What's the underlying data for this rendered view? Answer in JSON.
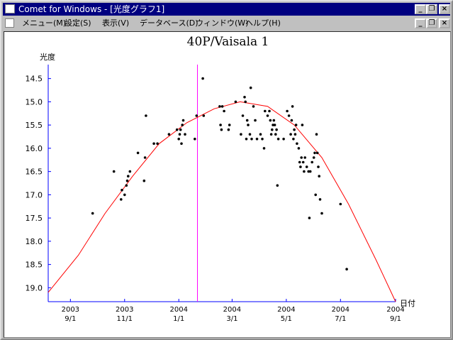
{
  "window": {
    "title": "Comet for Windows - [光度グラフ1]",
    "buttons": {
      "minimize": "_",
      "restore": "❐",
      "close": "×"
    }
  },
  "menu": {
    "items": [
      "メニュー(M)",
      "設定(S)",
      "表示(V)",
      "データベース(D)",
      "ウィンドウ(W)",
      "ヘルプ(H)"
    ]
  },
  "colors": {
    "curve": "#ff0000",
    "marker": "#ff00ff",
    "axis": "#0000ff",
    "points": "#000000"
  },
  "chart_data": {
    "type": "scatter",
    "title": "40P/Vaisala 1",
    "ylabel": "光度",
    "xlabel": "日付",
    "y_inverted": true,
    "ylim": [
      19.3,
      14.2
    ],
    "xlim": [
      "2003-08-07",
      "2004-09-01"
    ],
    "y_ticks": [
      14.5,
      15.0,
      15.5,
      16.0,
      16.5,
      17.0,
      17.5,
      18.0,
      18.5,
      19.0
    ],
    "x_ticks": [
      {
        "date": "2003-09-01",
        "year": "2003",
        "md": "9/1"
      },
      {
        "date": "2003-11-01",
        "year": "2003",
        "md": "11/1"
      },
      {
        "date": "2004-01-01",
        "year": "2004",
        "md": "1/1"
      },
      {
        "date": "2004-03-01",
        "year": "2004",
        "md": "3/1"
      },
      {
        "date": "2004-05-01",
        "year": "2004",
        "md": "5/1"
      },
      {
        "date": "2004-07-01",
        "year": "2004",
        "md": "7/1"
      },
      {
        "date": "2004-09-01",
        "year": "2004",
        "md": "9/1"
      }
    ],
    "marker_date": "2004-01-22",
    "curve": [
      [
        "2003-08-07",
        19.1
      ],
      [
        "2003-09-10",
        18.3
      ],
      [
        "2003-10-10",
        17.4
      ],
      [
        "2003-11-10",
        16.6
      ],
      [
        "2003-12-10",
        15.9
      ],
      [
        "2004-01-10",
        15.45
      ],
      [
        "2004-02-10",
        15.15
      ],
      [
        "2004-03-10",
        15.0
      ],
      [
        "2004-04-10",
        15.1
      ],
      [
        "2004-05-10",
        15.5
      ],
      [
        "2004-06-10",
        16.2
      ],
      [
        "2004-07-10",
        17.2
      ],
      [
        "2004-08-10",
        18.4
      ],
      [
        "2004-09-01",
        19.3
      ]
    ],
    "points": [
      [
        "2003-09-26",
        17.4
      ],
      [
        "2003-10-20",
        16.5
      ],
      [
        "2003-10-28",
        17.1
      ],
      [
        "2003-10-29",
        16.9
      ],
      [
        "2003-11-01",
        17.0
      ],
      [
        "2003-11-03",
        16.8
      ],
      [
        "2003-11-04",
        16.7
      ],
      [
        "2003-11-05",
        16.6
      ],
      [
        "2003-11-07",
        16.5
      ],
      [
        "2003-11-16",
        16.1
      ],
      [
        "2003-11-23",
        16.7
      ],
      [
        "2003-11-24",
        16.2
      ],
      [
        "2003-11-25",
        15.3
      ],
      [
        "2003-12-04",
        15.9
      ],
      [
        "2003-12-08",
        15.9
      ],
      [
        "2003-12-21",
        15.7
      ],
      [
        "2003-12-30",
        15.6
      ],
      [
        "2004-01-01",
        15.8
      ],
      [
        "2004-01-02",
        15.7
      ],
      [
        "2004-01-03",
        15.6
      ],
      [
        "2004-01-04",
        15.9
      ],
      [
        "2004-01-05",
        15.5
      ],
      [
        "2004-01-06",
        15.4
      ],
      [
        "2004-01-08",
        15.7
      ],
      [
        "2004-01-19",
        15.8
      ],
      [
        "2004-01-21",
        15.3
      ],
      [
        "2004-01-28",
        14.5
      ],
      [
        "2004-01-29",
        15.3
      ],
      [
        "2004-02-16",
        15.1
      ],
      [
        "2004-02-17",
        15.5
      ],
      [
        "2004-02-18",
        15.6
      ],
      [
        "2004-02-19",
        15.1
      ],
      [
        "2004-02-21",
        15.2
      ],
      [
        "2004-02-26",
        15.6
      ],
      [
        "2004-02-27",
        15.5
      ],
      [
        "2004-03-05",
        15.0
      ],
      [
        "2004-03-11",
        15.7
      ],
      [
        "2004-03-13",
        15.3
      ],
      [
        "2004-03-15",
        14.9
      ],
      [
        "2004-03-16",
        15.0
      ],
      [
        "2004-03-17",
        15.8
      ],
      [
        "2004-03-18",
        15.4
      ],
      [
        "2004-03-19",
        15.5
      ],
      [
        "2004-03-21",
        15.7
      ],
      [
        "2004-03-22",
        14.7
      ],
      [
        "2004-03-23",
        15.8
      ],
      [
        "2004-03-25",
        15.1
      ],
      [
        "2004-03-27",
        15.4
      ],
      [
        "2004-03-29",
        15.8
      ],
      [
        "2004-04-02",
        15.7
      ],
      [
        "2004-04-04",
        15.8
      ],
      [
        "2004-04-06",
        16.0
      ],
      [
        "2004-04-07",
        15.2
      ],
      [
        "2004-04-10",
        15.3
      ],
      [
        "2004-04-12",
        15.2
      ],
      [
        "2004-04-13",
        15.4
      ],
      [
        "2004-04-14",
        15.7
      ],
      [
        "2004-04-15",
        15.6
      ],
      [
        "2004-04-16",
        15.5
      ],
      [
        "2004-04-17",
        15.4
      ],
      [
        "2004-04-18",
        15.5
      ],
      [
        "2004-04-19",
        15.7
      ],
      [
        "2004-04-20",
        15.6
      ],
      [
        "2004-04-21",
        16.8
      ],
      [
        "2004-04-22",
        15.8
      ],
      [
        "2004-04-28",
        15.8
      ],
      [
        "2004-05-02",
        15.2
      ],
      [
        "2004-05-04",
        15.3
      ],
      [
        "2004-05-06",
        15.7
      ],
      [
        "2004-05-07",
        15.4
      ],
      [
        "2004-05-08",
        15.1
      ],
      [
        "2004-05-09",
        15.8
      ],
      [
        "2004-05-10",
        15.6
      ],
      [
        "2004-05-11",
        15.7
      ],
      [
        "2004-05-12",
        15.5
      ],
      [
        "2004-05-13",
        15.9
      ],
      [
        "2004-05-15",
        16.0
      ],
      [
        "2004-05-16",
        16.3
      ],
      [
        "2004-05-17",
        16.4
      ],
      [
        "2004-05-18",
        16.2
      ],
      [
        "2004-05-19",
        15.5
      ],
      [
        "2004-05-20",
        16.3
      ],
      [
        "2004-05-21",
        16.5
      ],
      [
        "2004-05-22",
        16.2
      ],
      [
        "2004-05-24",
        16.4
      ],
      [
        "2004-05-26",
        16.5
      ],
      [
        "2004-05-27",
        17.5
      ],
      [
        "2004-05-28",
        16.5
      ],
      [
        "2004-05-30",
        16.3
      ],
      [
        "2004-06-01",
        16.2
      ],
      [
        "2004-06-02",
        16.1
      ],
      [
        "2004-06-03",
        17.0
      ],
      [
        "2004-06-04",
        15.7
      ],
      [
        "2004-06-05",
        16.1
      ],
      [
        "2004-06-06",
        16.4
      ],
      [
        "2004-06-07",
        16.6
      ],
      [
        "2004-06-08",
        17.1
      ],
      [
        "2004-06-10",
        17.4
      ],
      [
        "2004-07-01",
        17.2
      ],
      [
        "2004-07-08",
        18.6
      ]
    ]
  }
}
